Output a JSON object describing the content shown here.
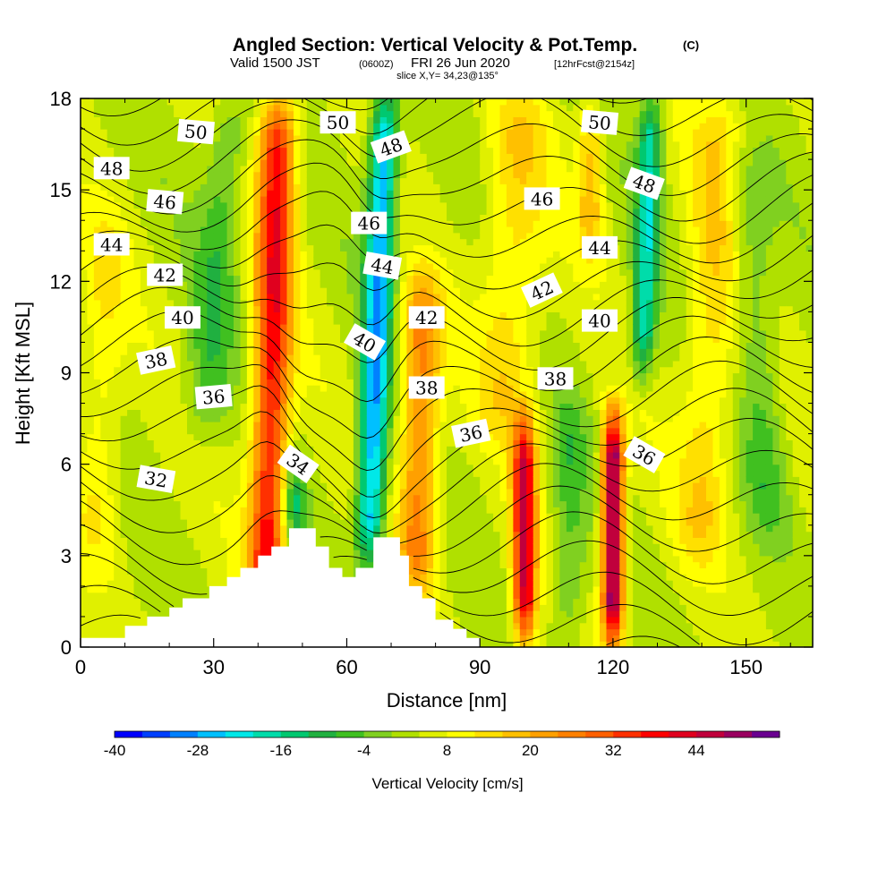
{
  "title": {
    "main": "Angled Section: Vertical Velocity & Pot.Temp.",
    "main_unit": "(C)",
    "valid_prefix": "Valid 1500 JST",
    "valid_z": "(0600Z)",
    "valid_date": "FRI 26 Jun 2020",
    "forecast": "[12hrFcst@2154z]",
    "slice": "slice X,Y= 34,23@135°"
  },
  "chart_data": {
    "type": "heatmap",
    "xlabel": "Distance [nm]",
    "ylabel": "Height [Kft MSL]",
    "xlim": [
      0,
      165
    ],
    "ylim": [
      0,
      18
    ],
    "x_ticks": [
      0,
      30,
      60,
      90,
      120,
      150
    ],
    "y_ticks": [
      0,
      3,
      6,
      9,
      12,
      15,
      18
    ],
    "colorbar": {
      "label": "Vertical Velocity [cm/s]",
      "min": -40,
      "max": 52,
      "step": 4,
      "tick_values": [
        -40,
        -28,
        -16,
        -4,
        8,
        20,
        32,
        44
      ],
      "colors": [
        "#0000ff",
        "#0040ff",
        "#0080ff",
        "#00c0ff",
        "#00e8e8",
        "#00dcaa",
        "#00c870",
        "#20b040",
        "#40c020",
        "#80d020",
        "#b0e000",
        "#e0f000",
        "#ffff00",
        "#ffe000",
        "#ffc000",
        "#ffa000",
        "#ff8000",
        "#ff6000",
        "#ff3000",
        "#ff0000",
        "#e0001e",
        "#c0003c",
        "#9a0060",
        "#6a0090"
      ]
    },
    "terrain_kft": [
      [
        0,
        0.3
      ],
      [
        10,
        0.3
      ],
      [
        10,
        0.7
      ],
      [
        15,
        0.7
      ],
      [
        15,
        1.0
      ],
      [
        20,
        1.0
      ],
      [
        20,
        1.3
      ],
      [
        23,
        1.3
      ],
      [
        23,
        1.6
      ],
      [
        29,
        1.6
      ],
      [
        29,
        2.0
      ],
      [
        33,
        2.0
      ],
      [
        33,
        2.3
      ],
      [
        36,
        2.3
      ],
      [
        36,
        2.6
      ],
      [
        40,
        2.6
      ],
      [
        40,
        3.0
      ],
      [
        43,
        3.0
      ],
      [
        43,
        3.3
      ],
      [
        47,
        3.3
      ],
      [
        47,
        3.9
      ],
      [
        53,
        3.9
      ],
      [
        53,
        3.3
      ],
      [
        56,
        3.3
      ],
      [
        56,
        2.6
      ],
      [
        59,
        2.6
      ],
      [
        59,
        2.3
      ],
      [
        62,
        2.3
      ],
      [
        62,
        2.6
      ],
      [
        66,
        2.6
      ],
      [
        66,
        3.6
      ],
      [
        72,
        3.6
      ],
      [
        72,
        3.0
      ],
      [
        74,
        3.0
      ],
      [
        74,
        2.0
      ],
      [
        77,
        2.0
      ],
      [
        77,
        1.6
      ],
      [
        80,
        1.6
      ],
      [
        80,
        0.9
      ],
      [
        84,
        0.9
      ],
      [
        84,
        0.6
      ],
      [
        87,
        0.6
      ],
      [
        87,
        0.3
      ],
      [
        90,
        0.3
      ],
      [
        90,
        0
      ]
    ],
    "theta_levels": [
      32,
      34,
      36,
      38,
      40,
      42,
      44,
      46,
      48,
      50
    ],
    "contour_labels": [
      {
        "text": "32",
        "x": 17,
        "y": 5.5,
        "angle": 10
      },
      {
        "text": "34",
        "x": 49,
        "y": 6.0,
        "angle": 35
      },
      {
        "text": "36",
        "x": 30,
        "y": 8.2,
        "angle": -5
      },
      {
        "text": "36",
        "x": 88,
        "y": 7.0,
        "angle": -12
      },
      {
        "text": "36",
        "x": 127,
        "y": 6.3,
        "angle": 30
      },
      {
        "text": "38",
        "x": 17,
        "y": 9.4,
        "angle": -12
      },
      {
        "text": "38",
        "x": 78,
        "y": 8.5,
        "angle": 0
      },
      {
        "text": "38",
        "x": 107,
        "y": 8.8,
        "angle": 0
      },
      {
        "text": "40",
        "x": 23,
        "y": 10.8,
        "angle": 0
      },
      {
        "text": "40",
        "x": 64,
        "y": 10.0,
        "angle": 30
      },
      {
        "text": "40",
        "x": 117,
        "y": 10.7,
        "angle": 0
      },
      {
        "text": "42",
        "x": 19,
        "y": 12.2,
        "angle": 0
      },
      {
        "text": "42",
        "x": 78,
        "y": 10.8,
        "angle": 0
      },
      {
        "text": "42",
        "x": 104,
        "y": 11.7,
        "angle": -25
      },
      {
        "text": "44",
        "x": 7,
        "y": 13.2,
        "angle": 0
      },
      {
        "text": "44",
        "x": 68,
        "y": 12.5,
        "angle": 10
      },
      {
        "text": "44",
        "x": 117,
        "y": 13.1,
        "angle": 0
      },
      {
        "text": "46",
        "x": 19,
        "y": 14.6,
        "angle": 5
      },
      {
        "text": "46",
        "x": 65,
        "y": 13.9,
        "angle": 0
      },
      {
        "text": "46",
        "x": 104,
        "y": 14.7,
        "angle": 0
      },
      {
        "text": "48",
        "x": 7,
        "y": 15.7,
        "angle": 0
      },
      {
        "text": "48",
        "x": 70,
        "y": 16.4,
        "angle": -20
      },
      {
        "text": "48",
        "x": 127,
        "y": 15.2,
        "angle": 20
      },
      {
        "text": "50",
        "x": 26,
        "y": 16.9,
        "angle": 5
      },
      {
        "text": "50",
        "x": 58,
        "y": 17.2,
        "angle": 0
      },
      {
        "text": "50",
        "x": 117,
        "y": 17.2,
        "angle": 5
      }
    ]
  }
}
